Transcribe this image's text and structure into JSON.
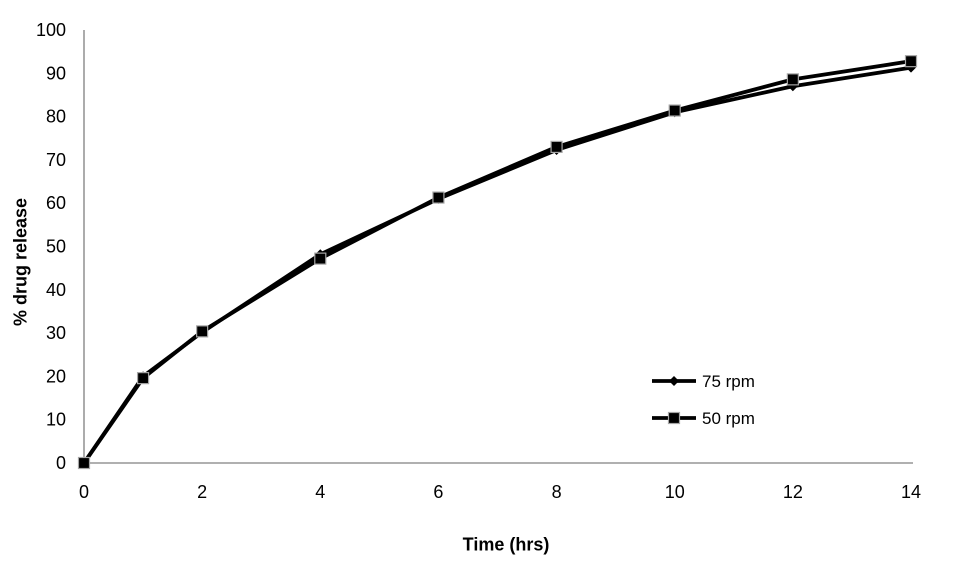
{
  "chart_data": {
    "type": "line",
    "title": "",
    "xlabel": "Time (hrs)",
    "ylabel": "% drug release",
    "x": [
      0,
      1,
      2,
      4,
      6,
      8,
      10,
      12,
      14
    ],
    "series": [
      {
        "name": "75 rpm",
        "marker": "diamond",
        "color": "#000000",
        "values": [
          0,
          20.0,
          30.2,
          48.2,
          61.0,
          72.3,
          81.0,
          87.0,
          91.3
        ]
      },
      {
        "name": "50 rpm",
        "marker": "square",
        "color": "#000000",
        "values": [
          0,
          19.6,
          30.4,
          47.2,
          61.3,
          73.0,
          81.4,
          88.6,
          92.8
        ]
      }
    ],
    "xlim": [
      0,
      14
    ],
    "ylim": [
      0,
      100
    ],
    "xticks": [
      0,
      2,
      4,
      6,
      8,
      10,
      12,
      14
    ],
    "yticks": [
      0,
      10,
      20,
      30,
      40,
      50,
      60,
      70,
      80,
      90,
      100
    ],
    "grid": false,
    "legend_position": "inside-right",
    "axis_color": "#808080",
    "marker_edge_color": "#a6a6a6",
    "line_color": "#000000"
  }
}
